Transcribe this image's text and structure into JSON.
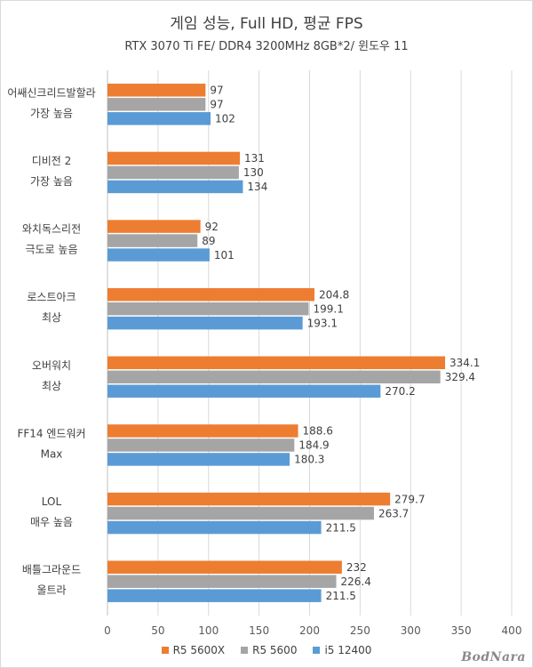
{
  "chart_data": {
    "type": "bar",
    "orientation": "horizontal",
    "title": "게임 성능, Full HD, 평균 FPS",
    "subtitle": "RTX 3070 Ti FE/ DDR4 3200MHz 8GB*2/ 윈도우 11",
    "categories": [
      [
        "어쌔신크리드발할라",
        "가장 높음"
      ],
      [
        "디비전 2",
        "가장 높음"
      ],
      [
        "와치독스리전",
        "극도로 높음"
      ],
      [
        "로스트아크",
        "최상"
      ],
      [
        "오버워치",
        "최상"
      ],
      [
        "FF14 엔드워커",
        "Max"
      ],
      [
        "LOL",
        "매우 높음"
      ],
      [
        "배틀그라운드",
        "울트라"
      ]
    ],
    "series": [
      {
        "name": "R5 5600X",
        "color": "#ed7d31",
        "values": [
          97,
          131,
          92,
          204.8,
          334.1,
          188.6,
          279.7,
          232
        ],
        "labels": [
          "97",
          "131",
          "92",
          "204.8",
          "334.1",
          "188.6",
          "279.7",
          "232"
        ]
      },
      {
        "name": "R5 5600",
        "color": "#a5a5a5",
        "values": [
          97,
          130,
          89,
          199.1,
          329.4,
          184.9,
          263.7,
          226.4
        ],
        "labels": [
          "97",
          "130",
          "89",
          "199.1",
          "329.4",
          "184.9",
          "263.7",
          "226.4"
        ]
      },
      {
        "name": "i5 12400",
        "color": "#5b9bd5",
        "values": [
          102,
          134,
          101,
          193.1,
          270.2,
          180.3,
          211.5,
          211.5
        ],
        "labels": [
          "102",
          "134",
          "101",
          "193.1",
          "270.2",
          "180.3",
          "211.5",
          "211.5"
        ]
      }
    ],
    "xlim": [
      0,
      400
    ],
    "xticks": [
      0,
      50,
      100,
      150,
      200,
      250,
      300,
      350,
      400
    ],
    "grid": true,
    "legend_position": "bottom"
  },
  "watermark": "BodNara"
}
